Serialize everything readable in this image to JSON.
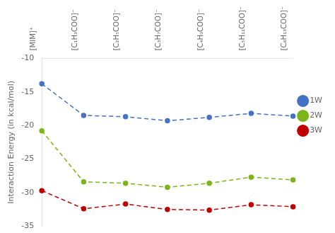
{
  "chart_data": {
    "type": "line",
    "categories": [
      "[MIM]⁺",
      "[C₁H₃COO]⁻",
      "[C₂H₅COO]⁻",
      "[C₃H₇COO]⁻",
      "[C₄H₉COO]⁻",
      "[C₅H₁₁COO]⁻",
      "[C₆H₁₃COO]⁻"
    ],
    "series": [
      {
        "name": "1W",
        "color": "#4472C4",
        "marker": "circle",
        "line_style": "dashed",
        "values": [
          -13.8,
          -18.5,
          -18.7,
          -19.3,
          -18.8,
          -18.2,
          -18.6
        ]
      },
      {
        "name": "2W",
        "color": "#7cb518",
        "marker": "circle",
        "line_style": "dashed",
        "values": [
          -20.8,
          -28.4,
          -28.6,
          -29.2,
          -28.6,
          -27.7,
          -28.1
        ]
      },
      {
        "name": "3W",
        "color": "#c00000",
        "marker": "circle",
        "line_style": "dashed",
        "values": [
          -29.7,
          -32.4,
          -31.7,
          -32.5,
          -32.6,
          -31.8,
          -32.1
        ]
      }
    ],
    "ylabel": "Interaction Energy (in kcal/mol)",
    "ylim": [
      -35,
      -10
    ],
    "yticks": [
      -35,
      -30,
      -25,
      -20,
      -15,
      -10
    ],
    "grid": false,
    "legend": "right"
  }
}
